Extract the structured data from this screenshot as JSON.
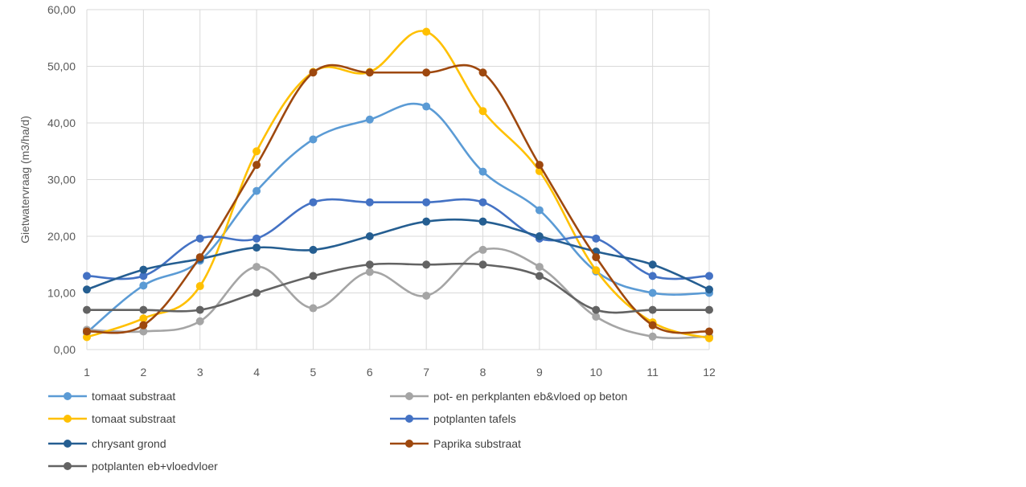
{
  "chart_data": {
    "type": "line",
    "title": "",
    "xlabel": "",
    "ylabel": "Gietwatervraag (m3/ha/d)",
    "ylim": [
      0,
      60
    ],
    "y_ticks": [
      "0,00",
      "10,00",
      "20,00",
      "30,00",
      "40,00",
      "50,00",
      "60,00"
    ],
    "y_tick_values": [
      0,
      10,
      20,
      30,
      40,
      50,
      60
    ],
    "categories": [
      "1",
      "2",
      "3",
      "4",
      "5",
      "6",
      "7",
      "8",
      "9",
      "10",
      "11",
      "12"
    ],
    "grid": true,
    "legend_position": "bottom",
    "series": [
      {
        "name": "tomaat substraat",
        "color": "#5B9BD5",
        "values": [
          3.0,
          11.3,
          15.7,
          28.0,
          37.1,
          40.6,
          42.9,
          31.4,
          24.6,
          13.8,
          10.0,
          10.0
        ]
      },
      {
        "name": "pot- en perkplanten eb&vloed op beton",
        "color": "#A5A5A5",
        "values": [
          3.5,
          3.2,
          5.0,
          14.6,
          7.3,
          13.7,
          9.5,
          17.6,
          14.6,
          5.8,
          2.3,
          2.3
        ]
      },
      {
        "name": "tomaat substraat",
        "color": "#FFC000",
        "values": [
          2.2,
          5.5,
          11.2,
          35.0,
          49.0,
          49.0,
          56.1,
          42.1,
          31.5,
          14.0,
          4.8,
          2.0
        ]
      },
      {
        "name": "potplanten tafels",
        "color": "#4472C4",
        "values": [
          13.0,
          13.0,
          19.6,
          19.6,
          26.0,
          26.0,
          26.0,
          26.0,
          19.6,
          19.6,
          13.0,
          13.0
        ]
      },
      {
        "name": "chrysant grond",
        "color": "#255E91",
        "values": [
          10.6,
          14.1,
          16.0,
          18.0,
          17.6,
          20.0,
          22.6,
          22.6,
          20.0,
          17.3,
          15.0,
          10.6
        ]
      },
      {
        "name": "Paprika substraat",
        "color": "#9E480E",
        "values": [
          3.2,
          4.3,
          16.3,
          32.6,
          48.9,
          48.9,
          48.9,
          48.9,
          32.6,
          16.3,
          4.3,
          3.2
        ]
      },
      {
        "name": "potplanten eb+vloedvloer",
        "color": "#636363",
        "values": [
          7.0,
          7.0,
          7.0,
          10.0,
          13.0,
          15.0,
          15.0,
          15.0,
          13.0,
          7.0,
          7.0,
          7.0
        ]
      }
    ]
  }
}
